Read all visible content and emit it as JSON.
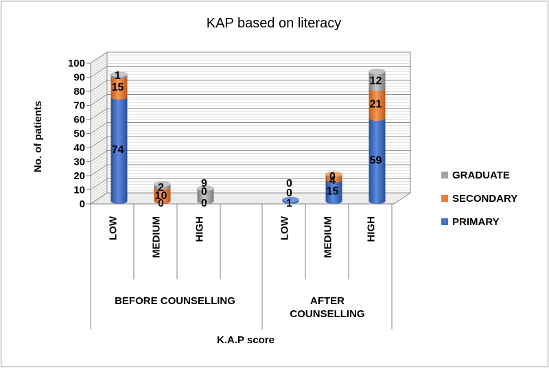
{
  "chart_data": {
    "type": "bar",
    "stacked": true,
    "three_d": true,
    "title": "KAP based on literacy",
    "xlabel": "K.A.P score",
    "ylabel": "No. of patients",
    "ylim": [
      0,
      100
    ],
    "yticks": [
      "0",
      "10",
      "20",
      "30",
      "40",
      "50",
      "60",
      "70",
      "80",
      "90",
      "100"
    ],
    "groups": [
      {
        "label": "BEFORE COUNSELLING",
        "categories": [
          "LOW",
          "MEDIUM",
          "HIGH"
        ]
      },
      {
        "label": "AFTER COUNSELLING",
        "categories": [
          "LOW",
          "MEDIUM",
          "HIGH"
        ]
      }
    ],
    "categories": [
      "LOW",
      "MEDIUM",
      "HIGH",
      "LOW",
      "MEDIUM",
      "HIGH"
    ],
    "series": [
      {
        "name": "PRIMARY",
        "color": "#4472C4",
        "values": [
          74,
          0,
          0,
          1,
          15,
          59
        ]
      },
      {
        "name": "SECONDARY",
        "color": "#ED7D31",
        "values": [
          15,
          10,
          0,
          0,
          4,
          21
        ]
      },
      {
        "name": "GRADUATE",
        "color": "#A5A5A5",
        "values": [
          1,
          2,
          9,
          0,
          0,
          12
        ]
      }
    ],
    "legend_order": [
      "GRADUATE",
      "SECONDARY",
      "PRIMARY"
    ],
    "legend_position": "right",
    "grid": true
  }
}
